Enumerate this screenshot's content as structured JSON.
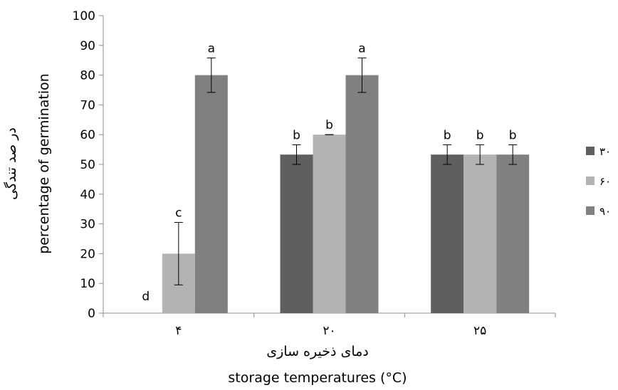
{
  "chart_data": {
    "type": "bar",
    "categories": [
      "۴",
      "۲۰",
      "۲۵"
    ],
    "series": [
      {
        "name": "۳۰",
        "color": "#5f5f5f",
        "values": [
          0,
          53.3,
          53.3
        ],
        "errors": [
          0,
          3.3,
          3.3
        ],
        "labels": [
          "d",
          "b",
          "b"
        ]
      },
      {
        "name": "۶۰",
        "color": "#b3b3b3",
        "values": [
          20,
          60,
          53.3
        ],
        "errors": [
          10.5,
          0,
          3.3
        ],
        "labels": [
          "c",
          "b",
          "b"
        ]
      },
      {
        "name": "۹۰",
        "color": "#808080",
        "values": [
          80,
          80,
          53.3
        ],
        "errors": [
          5.8,
          5.8,
          3.3
        ],
        "labels": [
          "a",
          "a",
          "b"
        ]
      }
    ],
    "ylim": [
      0,
      100
    ],
    "yticks": [
      0,
      10,
      20,
      30,
      40,
      50,
      60,
      70,
      80,
      90,
      100
    ],
    "ylabel_fa": "در صد تندگی",
    "ylabel_en": "percentage of germination",
    "xlabel_fa": "دمای ذخیره سازی",
    "xlabel_en": "storage temperatures (°C)",
    "legend_position": "right",
    "grid": false
  }
}
